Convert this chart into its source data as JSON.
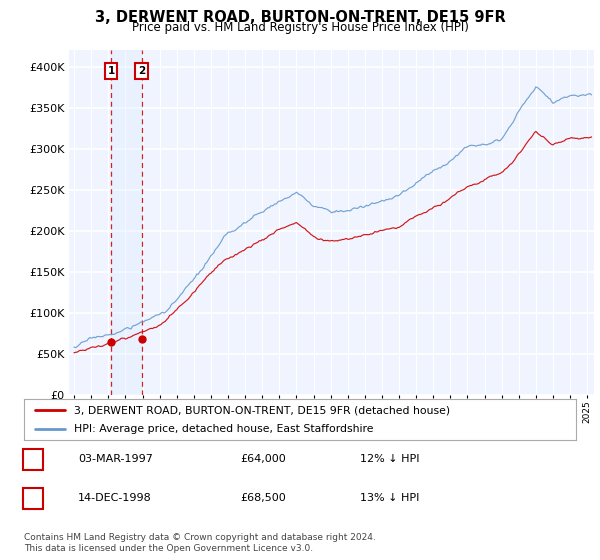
{
  "title": "3, DERWENT ROAD, BURTON-ON-TRENT, DE15 9FR",
  "subtitle": "Price paid vs. HM Land Registry's House Price Index (HPI)",
  "legend_line1": "3, DERWENT ROAD, BURTON-ON-TRENT, DE15 9FR (detached house)",
  "legend_line2": "HPI: Average price, detached house, East Staffordshire",
  "table_row1": [
    "1",
    "03-MAR-1997",
    "£64,000",
    "12% ↓ HPI"
  ],
  "table_row2": [
    "2",
    "14-DEC-1998",
    "£68,500",
    "13% ↓ HPI"
  ],
  "footer": "Contains HM Land Registry data © Crown copyright and database right 2024.\nThis data is licensed under the Open Government Licence v3.0.",
  "sale1_x": 1997.17,
  "sale1_y": 64000,
  "sale2_x": 1998.95,
  "sale2_y": 68500,
  "red_color": "#cc0000",
  "blue_color": "#6699cc",
  "shade_color": "#ddeeff",
  "ylim": [
    0,
    420000
  ],
  "xlim_start": 1994.7,
  "xlim_end": 2025.4
}
